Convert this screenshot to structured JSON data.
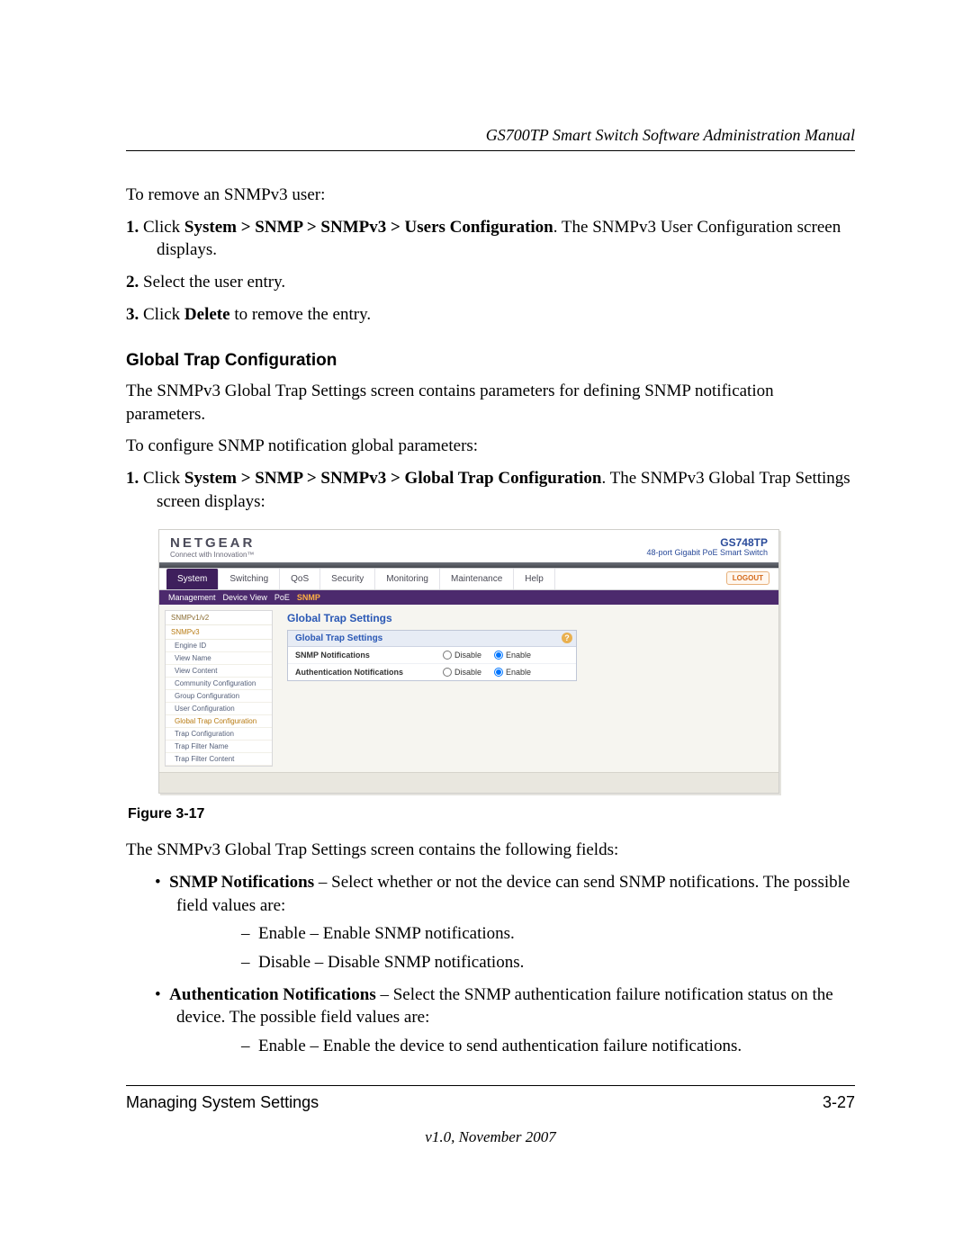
{
  "header": "GS700TP Smart Switch Software Administration Manual",
  "intro1": "To remove an SNMPv3 user:",
  "steps_remove": [
    {
      "n": "1.",
      "pre": "Click ",
      "b": "System > SNMP > SNMPv3 > Users Configuration",
      "post": ". The SNMPv3 User Configuration screen displays."
    },
    {
      "n": "2.",
      "pre": "Select the user entry.",
      "b": "",
      "post": ""
    },
    {
      "n": "3.",
      "pre": "Click ",
      "b": "Delete",
      "post": " to remove the entry."
    }
  ],
  "h3": "Global Trap Configuration",
  "p_after_h3": "The SNMPv3 Global Trap Settings screen contains parameters for defining SNMP notification parameters.",
  "p_configure": "To configure SNMP notification global parameters:",
  "steps_conf": [
    {
      "n": "1.",
      "pre": "Click ",
      "b": "System > SNMP > SNMPv3 > Global Trap Configuration",
      "post": ". The SNMPv3 Global Trap Settings screen displays:"
    }
  ],
  "fig_caption": "Figure 3-17",
  "p_after_fig": "The SNMPv3 Global Trap Settings screen contains the following fields:",
  "field1": {
    "name": "SNMP Notifications",
    "desc": " – Select whether or not the device can send SNMP notifications. The possible field values are:",
    "opts": [
      "Enable – Enable SNMP notifications.",
      "Disable – Disable SNMP notifications."
    ]
  },
  "field2": {
    "name": "Authentication Notifications",
    "desc": " – Select the SNMP authentication failure notification status on the device. The possible field values are:",
    "opts": [
      "Enable – Enable the device to send authentication failure notifications."
    ]
  },
  "footer_left": "Managing System Settings",
  "footer_right": "3-27",
  "footer_center": "v1.0, November 2007",
  "shot": {
    "brand": "NETGEAR",
    "brand_sub": "Connect with Innovation™",
    "model_code": "GS748TP",
    "model_desc": "48-port Gigabit PoE Smart Switch",
    "tabs": [
      "System",
      "Switching",
      "QoS",
      "Security",
      "Monitoring",
      "Maintenance",
      "Help"
    ],
    "active_tab": "System",
    "logout": "LOGOUT",
    "subnav": [
      "Management",
      "Device View",
      "PoE",
      "SNMP"
    ],
    "subnav_active": "SNMP",
    "sidebar_groups": [
      {
        "label": "SNMPv1/v2",
        "items": []
      },
      {
        "label": "SNMPv3",
        "active": true,
        "items": [
          "Engine ID",
          "View Name",
          "View Content",
          "Community Configuration",
          "Group Configuration",
          "User Configuration",
          "Global Trap Configuration",
          "Trap Configuration",
          "Trap Filter Name",
          "Trap Filter Content"
        ],
        "selected": "Global Trap Configuration"
      }
    ],
    "panel_title": "Global Trap Settings",
    "panel_box_title": "Global Trap Settings",
    "rows": [
      {
        "label": "SNMP Notifications",
        "disable": "Disable",
        "enable": "Enable",
        "sel": "enable"
      },
      {
        "label": "Authentication Notifications",
        "disable": "Disable",
        "enable": "Enable",
        "sel": "enable"
      }
    ]
  }
}
